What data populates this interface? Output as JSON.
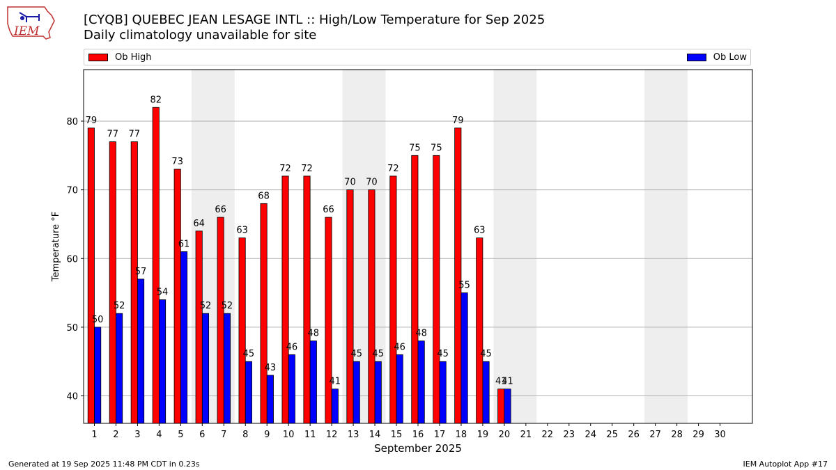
{
  "header": {
    "title": "[CYQB] QUEBEC JEAN LESAGE INTL :: High/Low Temperature for Sep 2025",
    "subtitle": "Daily climatology unavailable for site"
  },
  "logo": {
    "text": "IEM"
  },
  "footer": {
    "generated": "Generated at 19 Sep 2025 11:48 PM CDT in 0.23s",
    "app": "IEM Autoplot App #17"
  },
  "colors": {
    "high": "#ff0000",
    "low": "#0000ff",
    "weekend": "#eeeeee",
    "grid": "#b0b0b0"
  },
  "chart_data": {
    "type": "bar",
    "xlabel": "September 2025",
    "ylabel": "Temperature °F",
    "ylim": [
      36,
      87.5
    ],
    "yticks": [
      40,
      50,
      60,
      70,
      80
    ],
    "grid": true,
    "legend": "top, above plot",
    "categories": [
      "1",
      "2",
      "3",
      "4",
      "5",
      "6",
      "7",
      "8",
      "9",
      "10",
      "11",
      "12",
      "13",
      "14",
      "15",
      "16",
      "17",
      "18",
      "19",
      "20",
      "21",
      "22",
      "23",
      "24",
      "25",
      "26",
      "27",
      "28",
      "29",
      "30"
    ],
    "weekend_shading": [
      [
        "6",
        "7"
      ],
      [
        "13",
        "14"
      ],
      [
        "20",
        "21"
      ],
      [
        "27",
        "28"
      ]
    ],
    "series": [
      {
        "name": "Ob High",
        "values": [
          79,
          77,
          77,
          82,
          73,
          64,
          66,
          63,
          68,
          72,
          72,
          66,
          70,
          70,
          72,
          75,
          75,
          79,
          63,
          41,
          null,
          null,
          null,
          null,
          null,
          null,
          null,
          null,
          null,
          null
        ]
      },
      {
        "name": "Ob Low",
        "values": [
          50,
          52,
          57,
          54,
          61,
          52,
          52,
          45,
          43,
          46,
          48,
          41,
          45,
          45,
          46,
          48,
          45,
          55,
          45,
          41,
          null,
          null,
          null,
          null,
          null,
          null,
          null,
          null,
          null,
          null
        ]
      }
    ]
  }
}
